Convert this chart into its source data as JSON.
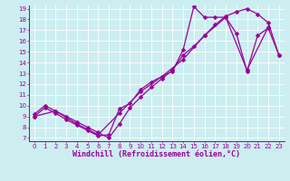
{
  "xlabel": "Windchill (Refroidissement éolien,°C)",
  "bg_color": "#cceef0",
  "line_color": "#990099",
  "xlim": [
    -0.5,
    23.5
  ],
  "ylim": [
    6.7,
    19.3
  ],
  "xticks": [
    0,
    1,
    2,
    3,
    4,
    5,
    6,
    7,
    8,
    9,
    10,
    11,
    12,
    13,
    14,
    15,
    16,
    17,
    18,
    19,
    20,
    21,
    22,
    23
  ],
  "yticks": [
    7,
    8,
    9,
    10,
    11,
    12,
    13,
    14,
    15,
    16,
    17,
    18,
    19
  ],
  "line1_x": [
    0,
    1,
    2,
    3,
    4,
    5,
    6,
    7,
    8,
    9,
    10,
    11,
    12,
    13,
    14,
    15,
    16,
    17,
    18,
    19,
    20,
    21,
    22,
    23
  ],
  "line1_y": [
    9,
    9.8,
    9.3,
    8.7,
    8.2,
    7.7,
    7.2,
    7.3,
    9.7,
    10.2,
    11.5,
    12.2,
    12.7,
    13.2,
    15.2,
    19.2,
    18.2,
    18.2,
    18.2,
    16.7,
    13.2,
    16.5,
    17.2,
    14.7
  ],
  "line2_x": [
    0,
    1,
    2,
    3,
    4,
    5,
    6,
    7,
    8,
    9,
    10,
    11,
    12,
    13,
    14,
    15,
    16,
    17,
    18,
    19,
    20,
    21,
    22,
    23
  ],
  "line2_y": [
    9.2,
    10.0,
    9.5,
    9.0,
    8.5,
    8.0,
    7.5,
    7.0,
    8.3,
    9.8,
    10.8,
    11.7,
    12.5,
    13.3,
    14.7,
    15.5,
    16.5,
    17.5,
    18.3,
    18.7,
    19.0,
    18.5,
    17.7,
    14.7
  ],
  "line3_x": [
    0,
    2,
    4,
    6,
    8,
    10,
    12,
    14,
    16,
    18,
    20,
    22
  ],
  "line3_y": [
    9.0,
    9.5,
    8.3,
    7.3,
    9.3,
    11.3,
    12.7,
    14.3,
    16.5,
    18.2,
    13.3,
    17.3
  ],
  "marker": "D",
  "marker_size": 2.5,
  "line_width": 0.9,
  "tick_fontsize": 5.0,
  "label_fontsize": 6.0
}
